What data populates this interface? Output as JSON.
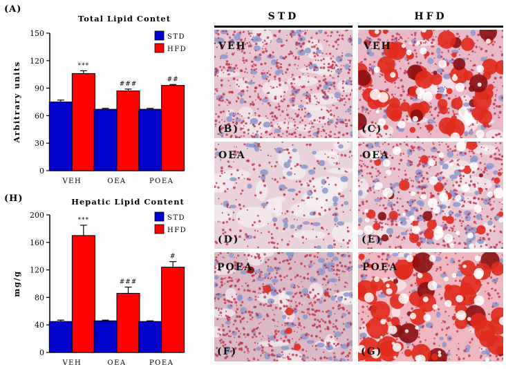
{
  "figure": {
    "panel_a_label": "(A)",
    "panel_h_label": "(H)",
    "column_headers": [
      "STD",
      "HFD"
    ],
    "micrographs": [
      {
        "row_tag": "VEH",
        "letter": "(B)",
        "diet": "STD"
      },
      {
        "row_tag": "VEH",
        "letter": "(C)",
        "diet": "HFD"
      },
      {
        "row_tag": "OEA",
        "letter": "(D)",
        "diet": "STD"
      },
      {
        "row_tag": "OEA",
        "letter": "(E)",
        "diet": "HFD"
      },
      {
        "row_tag": "POEA",
        "letter": "(F)",
        "diet": "STD"
      },
      {
        "row_tag": "POEA",
        "letter": "(G)",
        "diet": "HFD"
      }
    ]
  },
  "chart_data": [
    {
      "type": "bar",
      "title": "Total Lipid Contet",
      "xlabel": "",
      "ylabel": "Arbitrary units",
      "ylim": [
        0,
        150
      ],
      "yticks": [
        0,
        30,
        60,
        90,
        120,
        150
      ],
      "categories": [
        "VEH",
        "OEA",
        "POEA"
      ],
      "series": [
        {
          "name": "STD",
          "color": "#0000cc",
          "values": [
            75,
            67,
            67
          ],
          "errors": [
            2,
            1,
            1
          ]
        },
        {
          "name": "HFD",
          "color": "#ff0000",
          "values": [
            106,
            87,
            93
          ],
          "errors": [
            3,
            2,
            1
          ]
        }
      ],
      "annotations": [
        "***",
        "###",
        "##"
      ],
      "legend_position": "top-right"
    },
    {
      "type": "bar",
      "title": "Hepatic Lipid Content",
      "xlabel": "",
      "ylabel": "mg/g",
      "ylim": [
        0,
        200
      ],
      "yticks": [
        0,
        40,
        80,
        120,
        160,
        200
      ],
      "categories": [
        "VEH",
        "OEA",
        "POEA"
      ],
      "series": [
        {
          "name": "STD",
          "color": "#0000cc",
          "values": [
            45,
            46,
            45
          ],
          "errors": [
            2,
            1,
            1
          ]
        },
        {
          "name": "HFD",
          "color": "#ff0000",
          "values": [
            170,
            86,
            124
          ],
          "errors": [
            15,
            9,
            8
          ]
        }
      ],
      "annotations": [
        "***",
        "###",
        "#"
      ],
      "legend_position": "top-right"
    }
  ]
}
